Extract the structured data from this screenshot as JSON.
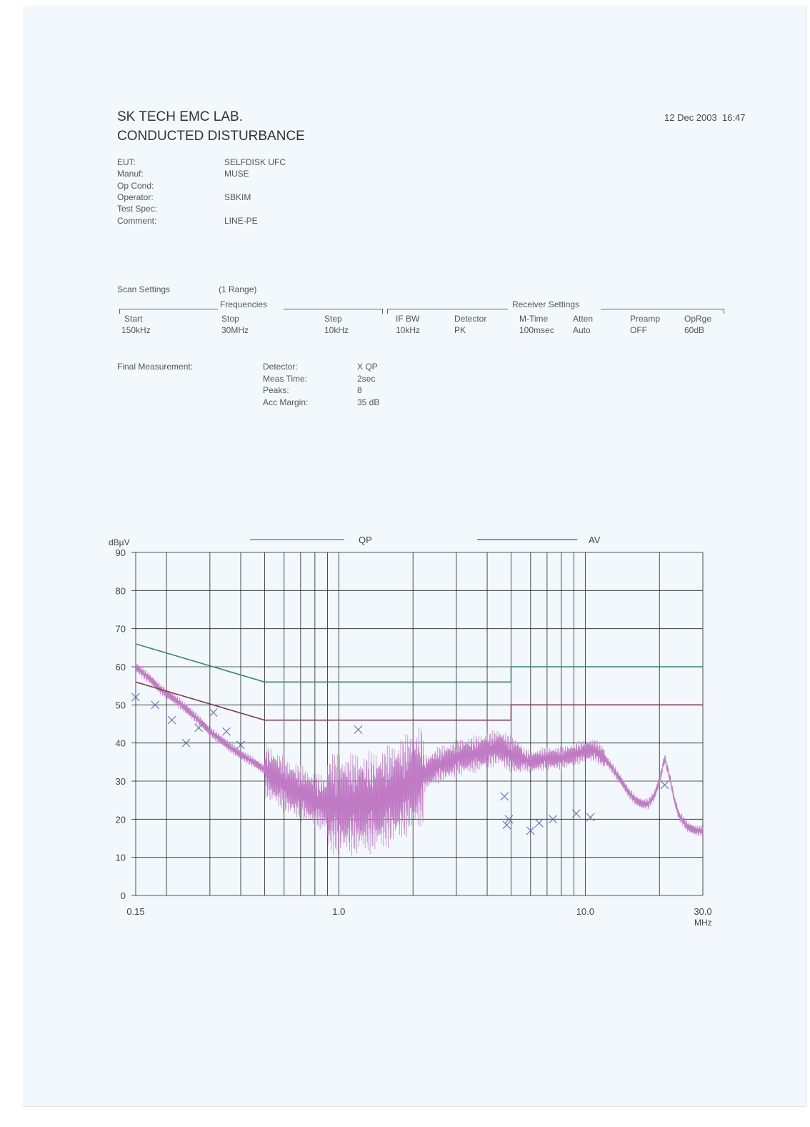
{
  "header": {
    "lab_name": "SK TECH EMC LAB.",
    "title": "CONDUCTED DISTURBANCE",
    "datetime": "12 Dec 2003  16:47"
  },
  "info": [
    {
      "label": "EUT:",
      "value": "SELFDISK UFC"
    },
    {
      "label": "Manuf:",
      "value": "MUSE"
    },
    {
      "label": "Op Cond:",
      "value": ""
    },
    {
      "label": "Operator:",
      "value": "SBKIM"
    },
    {
      "label": "Test Spec:",
      "value": ""
    },
    {
      "label": "Comment:",
      "value": "LINE-PE"
    }
  ],
  "scan": {
    "label": "Scan Settings",
    "range": "(1  Range)",
    "frequencies_title": "Frequencies",
    "receiver_title": "Receiver Settings",
    "headers": [
      "Start",
      "Stop",
      "Step",
      "IF BW",
      "Detector",
      "M-Time",
      "Atten",
      "Preamp",
      "OpRge"
    ],
    "values": [
      "150kHz",
      "30MHz",
      "10kHz",
      "10kHz",
      "PK",
      "100msec",
      "Auto",
      "OFF",
      "60dB"
    ]
  },
  "final": {
    "label": "Final Measurement:",
    "rows": [
      {
        "label": "Detector:",
        "value": "X QP"
      },
      {
        "label": "Meas Time:",
        "value": "2sec"
      },
      {
        "label": "Peaks:",
        "value": "8"
      },
      {
        "label": "Acc Margin:",
        "value": "35 dB"
      }
    ]
  },
  "chart_data": {
    "type": "line",
    "ylabel": "dBµV",
    "xlabel": "MHz",
    "x_scale": "log",
    "xlim": [
      0.15,
      30.0
    ],
    "ylim": [
      0,
      90
    ],
    "x_tick_labels": [
      "0.15",
      "1.0",
      "10.0",
      "30.0"
    ],
    "y_ticks": [
      0,
      10,
      20,
      30,
      40,
      50,
      60,
      70,
      80,
      90
    ],
    "grid": true,
    "legend_position": "top",
    "colors": {
      "qp": "#2e8b6e",
      "av": "#8b3a5a",
      "trace": "#c07ac4",
      "marker": "#5a6fc0",
      "grid": "#222222"
    },
    "series": [
      {
        "name": "QP",
        "points": [
          [
            0.15,
            66
          ],
          [
            0.5,
            56
          ],
          [
            5.0,
            56
          ],
          [
            5.0,
            60
          ],
          [
            30.0,
            60
          ]
        ]
      },
      {
        "name": "AV",
        "points": [
          [
            0.15,
            56
          ],
          [
            0.5,
            46
          ],
          [
            5.0,
            46
          ],
          [
            5.0,
            50
          ],
          [
            30.0,
            50
          ]
        ]
      }
    ],
    "trace_points": [
      [
        0.15,
        60
      ],
      [
        0.17,
        57
      ],
      [
        0.19,
        54
      ],
      [
        0.21,
        52
      ],
      [
        0.23,
        50
      ],
      [
        0.25,
        48
      ],
      [
        0.28,
        45
      ],
      [
        0.3,
        43
      ],
      [
        0.33,
        41
      ],
      [
        0.36,
        39
      ],
      [
        0.4,
        37
      ],
      [
        0.45,
        35
      ],
      [
        0.5,
        33
      ],
      [
        0.55,
        31
      ],
      [
        0.6,
        29
      ],
      [
        0.7,
        27
      ],
      [
        0.8,
        25
      ],
      [
        0.9,
        24
      ],
      [
        1.0,
        24
      ],
      [
        1.2,
        24
      ],
      [
        1.5,
        25
      ],
      [
        2.0,
        30
      ],
      [
        2.5,
        34
      ],
      [
        3.0,
        36
      ],
      [
        3.5,
        37
      ],
      [
        4.0,
        38
      ],
      [
        4.5,
        39
      ],
      [
        5.0,
        37
      ],
      [
        5.5,
        36
      ],
      [
        6.0,
        35
      ],
      [
        7.0,
        36
      ],
      [
        8.0,
        36
      ],
      [
        9.0,
        37
      ],
      [
        10.0,
        38
      ],
      [
        11.0,
        38
      ],
      [
        12.0,
        36
      ],
      [
        13.0,
        33
      ],
      [
        14.0,
        30
      ],
      [
        15.0,
        27
      ],
      [
        16.0,
        25
      ],
      [
        17.0,
        24
      ],
      [
        18.0,
        24
      ],
      [
        19.0,
        26
      ],
      [
        20.0,
        30
      ],
      [
        21.0,
        36
      ],
      [
        22.0,
        31
      ],
      [
        23.0,
        25
      ],
      [
        24.0,
        21
      ],
      [
        26.0,
        18
      ],
      [
        28.0,
        17
      ],
      [
        30.0,
        17
      ]
    ],
    "qp_markers": [
      [
        0.15,
        52
      ],
      [
        0.18,
        50
      ],
      [
        0.21,
        46
      ],
      [
        0.24,
        40
      ],
      [
        0.27,
        44
      ],
      [
        0.31,
        48
      ],
      [
        0.35,
        43
      ],
      [
        0.4,
        39.5
      ],
      [
        1.2,
        43.5
      ],
      [
        4.7,
        26
      ],
      [
        4.8,
        18.5
      ],
      [
        4.9,
        20
      ],
      [
        6.0,
        17
      ],
      [
        6.5,
        19
      ],
      [
        7.4,
        20
      ],
      [
        9.2,
        21.5
      ],
      [
        10.5,
        20.5
      ],
      [
        21.0,
        29
      ]
    ]
  }
}
